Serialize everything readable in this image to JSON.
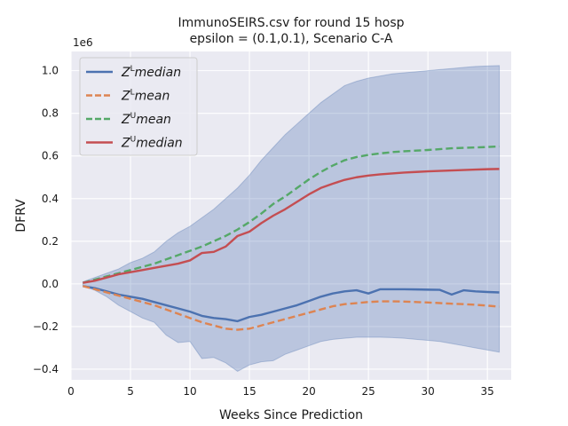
{
  "chart_data": {
    "type": "line",
    "title_line1": "ImmunoSEIRS.csv for round 15 hosp",
    "title_line2": "epsilon = (0.1,0.1), Scenario C-A",
    "xlabel": "Weeks Since Prediction",
    "ylabel": "DFRV",
    "y_offset_label": "1e6",
    "xlim": [
      0.0,
      37.0
    ],
    "ylim": [
      -0.45,
      1.09
    ],
    "y_scale_factor": 1000000,
    "x_ticks": [
      0,
      5,
      10,
      15,
      20,
      25,
      30,
      35
    ],
    "x_tick_labels": [
      "0",
      "5",
      "10",
      "15",
      "20",
      "25",
      "30",
      "35"
    ],
    "y_ticks": [
      -0.4,
      -0.2,
      0.0,
      0.2,
      0.4,
      0.6,
      0.8,
      1.0
    ],
    "y_tick_labels": [
      "−0.4",
      "−0.2",
      "0.0",
      "0.2",
      "0.4",
      "0.6",
      "0.8",
      "1.0"
    ],
    "grid": true,
    "background": "#EAEAF2",
    "legend_position": "upper-left",
    "x": [
      1,
      2,
      3,
      4,
      5,
      6,
      7,
      8,
      9,
      10,
      11,
      12,
      13,
      14,
      15,
      16,
      17,
      18,
      19,
      20,
      21,
      22,
      23,
      24,
      25,
      26,
      27,
      28,
      29,
      30,
      31,
      32,
      33,
      34,
      35,
      36
    ],
    "band": {
      "color": "#4C72B0",
      "opacity": 0.3,
      "upper": [
        0.01,
        0.03,
        0.05,
        0.07,
        0.1,
        0.12,
        0.15,
        0.2,
        0.24,
        0.27,
        0.31,
        0.35,
        0.4,
        0.45,
        0.51,
        0.58,
        0.64,
        0.7,
        0.75,
        0.8,
        0.85,
        0.89,
        0.93,
        0.95,
        0.965,
        0.975,
        0.985,
        0.99,
        0.995,
        1.0,
        1.005,
        1.01,
        1.015,
        1.02,
        1.022,
        1.024
      ],
      "lower": [
        -0.01,
        -0.03,
        -0.06,
        -0.1,
        -0.13,
        -0.16,
        -0.18,
        -0.24,
        -0.275,
        -0.27,
        -0.35,
        -0.345,
        -0.37,
        -0.41,
        -0.38,
        -0.365,
        -0.36,
        -0.33,
        -0.31,
        -0.29,
        -0.27,
        -0.26,
        -0.255,
        -0.25,
        -0.25,
        -0.25,
        -0.252,
        -0.255,
        -0.26,
        -0.265,
        -0.27,
        -0.28,
        -0.29,
        -0.3,
        -0.31,
        -0.32
      ]
    },
    "series": [
      {
        "name": "Z^L median",
        "base": "Z",
        "sup": "L",
        "suffix": "median",
        "color": "#4C72B0",
        "dash": "solid",
        "values": [
          -0.01,
          -0.02,
          -0.035,
          -0.05,
          -0.06,
          -0.07,
          -0.085,
          -0.1,
          -0.115,
          -0.13,
          -0.15,
          -0.16,
          -0.165,
          -0.175,
          -0.155,
          -0.145,
          -0.13,
          -0.115,
          -0.1,
          -0.08,
          -0.06,
          -0.045,
          -0.035,
          -0.03,
          -0.045,
          -0.025,
          -0.025,
          -0.025,
          -0.026,
          -0.027,
          -0.028,
          -0.05,
          -0.03,
          -0.035,
          -0.038,
          -0.04
        ]
      },
      {
        "name": "Z^L mean",
        "base": "Z",
        "sup": "L",
        "suffix": "mean",
        "color": "#DD8452",
        "dash": "dashed",
        "values": [
          -0.01,
          -0.025,
          -0.04,
          -0.055,
          -0.07,
          -0.085,
          -0.1,
          -0.12,
          -0.14,
          -0.16,
          -0.18,
          -0.195,
          -0.21,
          -0.215,
          -0.21,
          -0.195,
          -0.18,
          -0.165,
          -0.15,
          -0.135,
          -0.12,
          -0.105,
          -0.095,
          -0.09,
          -0.085,
          -0.082,
          -0.082,
          -0.083,
          -0.085,
          -0.087,
          -0.09,
          -0.093,
          -0.095,
          -0.098,
          -0.102,
          -0.107
        ]
      },
      {
        "name": "Z^U mean",
        "base": "Z",
        "sup": "U",
        "suffix": "mean",
        "color": "#55A868",
        "dash": "dashed",
        "values": [
          0.005,
          0.02,
          0.035,
          0.05,
          0.065,
          0.08,
          0.095,
          0.115,
          0.135,
          0.155,
          0.175,
          0.2,
          0.225,
          0.255,
          0.29,
          0.33,
          0.375,
          0.41,
          0.45,
          0.49,
          0.525,
          0.555,
          0.58,
          0.595,
          0.605,
          0.612,
          0.618,
          0.622,
          0.625,
          0.628,
          0.632,
          0.636,
          0.638,
          0.64,
          0.642,
          0.645
        ]
      },
      {
        "name": "Z^U median",
        "base": "Z",
        "sup": "U",
        "suffix": "median",
        "color": "#C44E52",
        "dash": "solid",
        "values": [
          0.005,
          0.015,
          0.03,
          0.045,
          0.055,
          0.065,
          0.075,
          0.085,
          0.095,
          0.11,
          0.145,
          0.15,
          0.175,
          0.225,
          0.245,
          0.285,
          0.32,
          0.35,
          0.385,
          0.42,
          0.45,
          0.47,
          0.488,
          0.5,
          0.508,
          0.514,
          0.518,
          0.522,
          0.525,
          0.528,
          0.53,
          0.532,
          0.534,
          0.536,
          0.538,
          0.539
        ]
      }
    ]
  }
}
